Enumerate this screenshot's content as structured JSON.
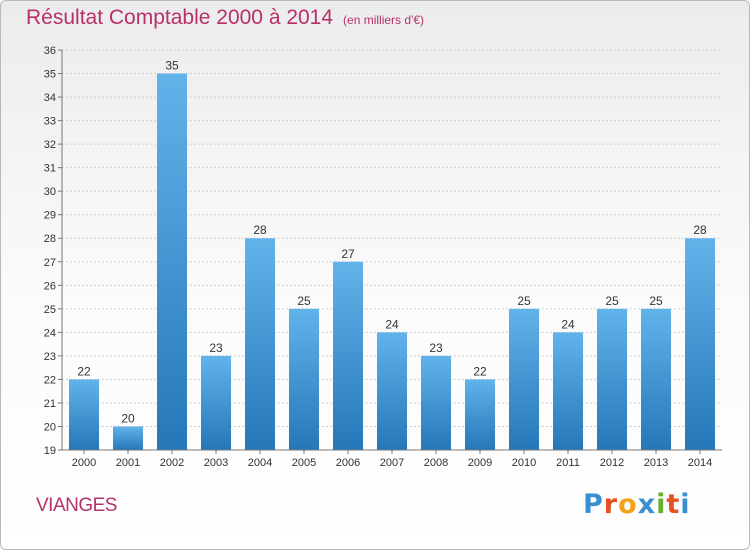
{
  "header": {
    "title": "Résultat Comptable 2000 à 2014",
    "unit": "(en milliers d'€)"
  },
  "footer": {
    "place": "VIANGES",
    "logo_letters": [
      "P",
      "r",
      "o",
      "x",
      "i",
      "t",
      "i"
    ],
    "logo_colors": [
      "#3a8fd1",
      "#e8501f",
      "#f3a21b",
      "#3a8fd1",
      "#66b22e",
      "#e8501f",
      "#3a8fd1"
    ]
  },
  "colors": {
    "title": "#b8306b",
    "bar_top": "#62b3ea",
    "bar_bottom": "#2577b8"
  },
  "chart_data": {
    "type": "bar",
    "title": "Résultat Comptable 2000 à 2014",
    "categories": [
      "2000",
      "2001",
      "2002",
      "2003",
      "2004",
      "2005",
      "2006",
      "2007",
      "2008",
      "2009",
      "2010",
      "2011",
      "2012",
      "2013",
      "2014"
    ],
    "values": [
      22,
      20,
      35,
      23,
      28,
      25,
      27,
      24,
      23,
      22,
      25,
      24,
      25,
      25,
      28
    ],
    "ylim": [
      19,
      36
    ],
    "yticks": [
      19,
      20,
      21,
      22,
      23,
      24,
      25,
      26,
      27,
      28,
      29,
      30,
      31,
      32,
      33,
      34,
      35,
      36
    ],
    "grid": true,
    "xlabel": "",
    "ylabel": ""
  }
}
